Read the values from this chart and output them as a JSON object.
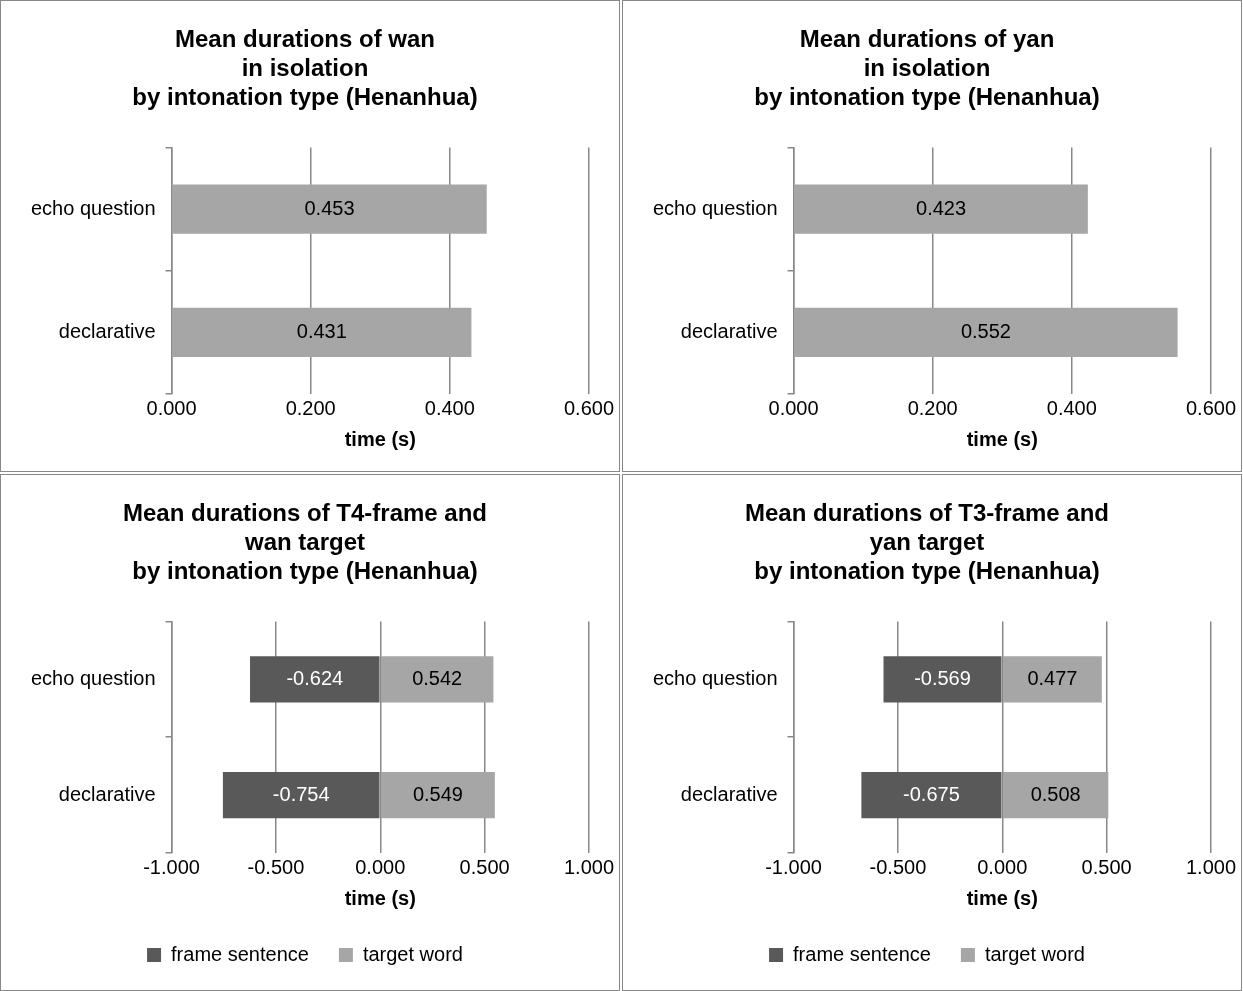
{
  "chart_data": [
    {
      "type": "bar",
      "orientation": "horizontal",
      "title": "Mean durations of wan\nin isolation\nby intonation type (Henanhua)",
      "xlabel": "time (s)",
      "categories": [
        "echo question",
        "declarative"
      ],
      "series": [
        {
          "color": "#a6a6a6",
          "values": [
            0.453,
            0.431
          ]
        }
      ],
      "xlim": [
        0,
        0.6
      ],
      "xticks": [
        {
          "value": 0,
          "label": "0.000"
        },
        {
          "value": 0.2,
          "label": "0.200"
        },
        {
          "value": 0.4,
          "label": "0.400"
        },
        {
          "value": 0.6,
          "label": "0.600"
        }
      ],
      "grid": "x",
      "data_labels": true
    },
    {
      "type": "bar",
      "orientation": "horizontal",
      "title": "Mean durations of yan\nin isolation\nby intonation type (Henanhua)",
      "xlabel": "time (s)",
      "categories": [
        "echo question",
        "declarative"
      ],
      "series": [
        {
          "color": "#a6a6a6",
          "values": [
            0.423,
            0.552
          ]
        }
      ],
      "xlim": [
        0,
        0.6
      ],
      "xticks": [
        {
          "value": 0,
          "label": "0.000"
        },
        {
          "value": 0.2,
          "label": "0.200"
        },
        {
          "value": 0.4,
          "label": "0.400"
        },
        {
          "value": 0.6,
          "label": "0.600"
        }
      ],
      "grid": "x",
      "data_labels": true
    },
    {
      "type": "bar",
      "orientation": "horizontal",
      "stacked": true,
      "title": "Mean durations of T4-frame and\nwan target\nby intonation type (Henanhua)",
      "xlabel": "time (s)",
      "categories": [
        "echo question",
        "declarative"
      ],
      "series": [
        {
          "name": "frame sentence",
          "color": "#595959",
          "values": [
            -0.624,
            -0.754
          ]
        },
        {
          "name": "target word",
          "color": "#a6a6a6",
          "values": [
            0.542,
            0.549
          ]
        }
      ],
      "xlim": [
        -1,
        1
      ],
      "xticks": [
        {
          "value": -1,
          "label": "-1.000"
        },
        {
          "value": -0.5,
          "label": "-0.500"
        },
        {
          "value": 0,
          "label": "0.000"
        },
        {
          "value": 0.5,
          "label": "0.500"
        },
        {
          "value": 1,
          "label": "1.000"
        }
      ],
      "grid": "x",
      "legend": "bottom",
      "data_labels": true
    },
    {
      "type": "bar",
      "orientation": "horizontal",
      "stacked": true,
      "title": "Mean durations of T3-frame and\nyan target\nby intonation type (Henanhua)",
      "xlabel": "time (s)",
      "categories": [
        "echo question",
        "declarative"
      ],
      "series": [
        {
          "name": "frame sentence",
          "color": "#595959",
          "values": [
            -0.569,
            -0.675
          ]
        },
        {
          "name": "target word",
          "color": "#a6a6a6",
          "values": [
            0.477,
            0.508
          ]
        }
      ],
      "xlim": [
        -1,
        1
      ],
      "xticks": [
        {
          "value": -1,
          "label": "-1.000"
        },
        {
          "value": -0.5,
          "label": "-0.500"
        },
        {
          "value": 0,
          "label": "0.000"
        },
        {
          "value": 0.5,
          "label": "0.500"
        },
        {
          "value": 1,
          "label": "1.000"
        }
      ],
      "grid": "x",
      "legend": "bottom",
      "data_labels": true
    }
  ]
}
